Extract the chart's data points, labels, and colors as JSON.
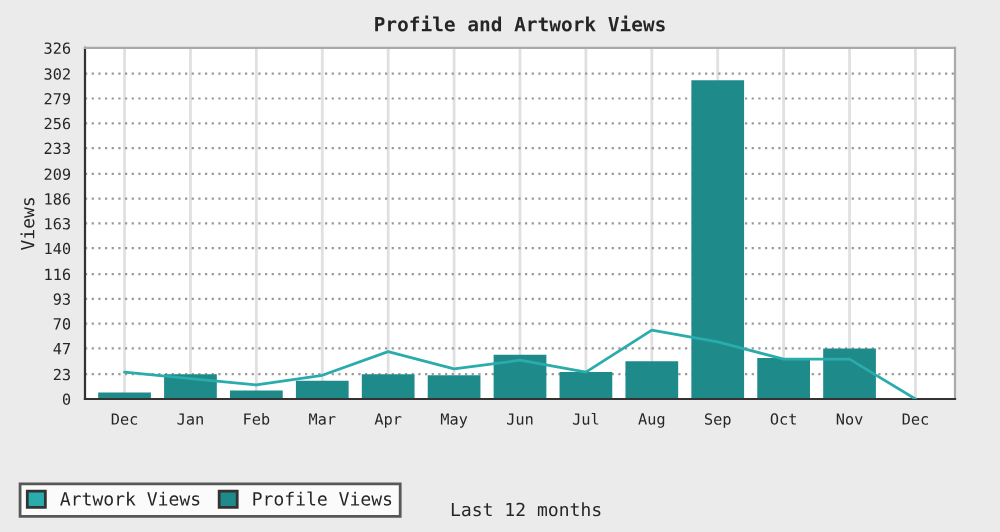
{
  "chart_data": {
    "type": "bar",
    "title": "Profile and Artwork Views",
    "xlabel": "Last 12 months",
    "ylabel": "Views",
    "categories": [
      "Dec",
      "Jan",
      "Feb",
      "Mar",
      "Apr",
      "May",
      "Jun",
      "Jul",
      "Aug",
      "Sep",
      "Oct",
      "Nov",
      "Dec"
    ],
    "series": [
      {
        "name": "Artwork Views",
        "type": "line",
        "color": "#2aacac",
        "values": [
          25,
          19,
          13,
          22,
          44,
          28,
          36,
          25,
          64,
          53,
          37,
          37,
          0
        ]
      },
      {
        "name": "Profile Views",
        "color": "#1e8a8a",
        "values": [
          6,
          23,
          8,
          17,
          23,
          22,
          41,
          25,
          35,
          296,
          38,
          47,
          0
        ]
      }
    ],
    "ylim": [
      0,
      326
    ],
    "yticks": [
      0,
      23,
      47,
      70,
      93,
      116,
      140,
      163,
      186,
      209,
      233,
      256,
      279,
      302,
      326
    ],
    "grid": true,
    "legend": "bottom left",
    "marker": "none",
    "line_style": "solid"
  }
}
